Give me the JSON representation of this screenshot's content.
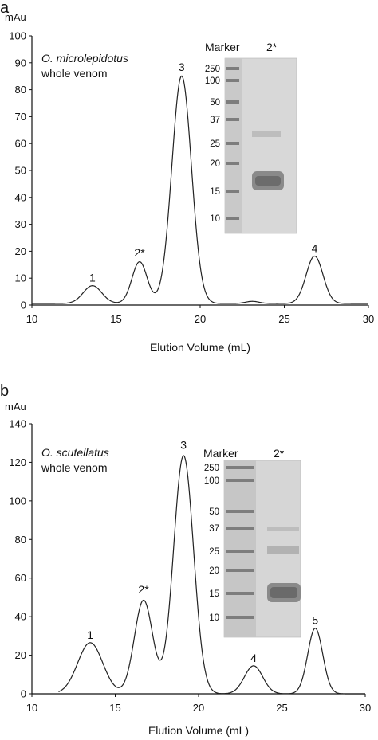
{
  "chart_data": [
    {
      "type": "line",
      "panel_label": "a",
      "yunit": "mAu",
      "xlabel": "Elution Volume (mL)",
      "xlim": [
        10,
        30
      ],
      "ylim": [
        0,
        100
      ],
      "xticks": [
        10,
        15,
        20,
        25,
        30
      ],
      "yticks": [
        0,
        10,
        20,
        30,
        40,
        50,
        60,
        70,
        80,
        90,
        100
      ],
      "xtick_labels": [
        "10",
        "15",
        "20",
        "25",
        "30"
      ],
      "ytick_labels": [
        "0",
        "10",
        "20",
        "30",
        "40",
        "50",
        "60",
        "70",
        "80",
        "90",
        "100"
      ],
      "annotation": {
        "species": "O. microlepidotus",
        "line2": "whole venom"
      },
      "baseline": {
        "value": 0.6,
        "start": 10
      },
      "peaks": [
        {
          "label": "1",
          "x": 13.6,
          "y": 7.2
        },
        {
          "label": "2*",
          "x": 16.4,
          "y": 16.5
        },
        {
          "label": "3",
          "x": 18.9,
          "y": 85.5
        },
        {
          "label": "4",
          "x": 26.8,
          "y": 18.2
        }
      ],
      "trace_peaks": [
        {
          "x": 13.6,
          "h": 6.6,
          "w": 0.55
        },
        {
          "x": 16.4,
          "h": 15.5,
          "w": 0.45
        },
        {
          "x": 18.9,
          "h": 84.5,
          "w": 0.58
        },
        {
          "x": 23.1,
          "h": 0.8,
          "w": 0.4
        },
        {
          "x": 26.8,
          "h": 17.6,
          "w": 0.5
        }
      ],
      "gel": {
        "marker_heading": "Marker",
        "lane_heading": "2*",
        "marker_bands": [
          "250",
          "100",
          "50",
          "37",
          "25",
          "20",
          "15",
          "10"
        ]
      }
    },
    {
      "type": "line",
      "panel_label": "b",
      "yunit": "mAu",
      "xlabel": "Elution Volume (mL)",
      "xlim": [
        10,
        30
      ],
      "ylim": [
        0,
        140
      ],
      "xticks": [
        10,
        15,
        20,
        25,
        30
      ],
      "yticks": [
        0,
        20,
        40,
        60,
        80,
        100,
        120,
        140
      ],
      "xtick_labels": [
        "10",
        "15",
        "20",
        "25",
        "30"
      ],
      "ytick_labels": [
        "0",
        "20",
        "40",
        "60",
        "80",
        "100",
        "120",
        "140"
      ],
      "annotation": {
        "species": "O. scutellatus",
        "line2": "whole venom"
      },
      "baseline": {
        "value": 0.0,
        "start": 11.6
      },
      "peaks": [
        {
          "label": "1",
          "x": 13.5,
          "y": 26.5
        },
        {
          "label": "2*",
          "x": 16.7,
          "y": 50
        },
        {
          "label": "3",
          "x": 19.1,
          "y": 125
        },
        {
          "label": "4",
          "x": 23.3,
          "y": 14.5
        },
        {
          "label": "5",
          "x": 27.0,
          "y": 34
        }
      ],
      "trace_peaks": [
        {
          "x": 13.5,
          "h": 26.5,
          "w": 0.75
        },
        {
          "x": 16.7,
          "h": 48.5,
          "w": 0.55
        },
        {
          "x": 19.1,
          "h": 123.5,
          "w": 0.6
        },
        {
          "x": 23.3,
          "h": 14.5,
          "w": 0.55
        },
        {
          "x": 27.0,
          "h": 34.0,
          "w": 0.45
        }
      ],
      "gel": {
        "marker_heading": "Marker",
        "lane_heading": "2*",
        "marker_bands": [
          "250",
          "100",
          "50",
          "37",
          "25",
          "20",
          "15",
          "10"
        ]
      }
    }
  ]
}
